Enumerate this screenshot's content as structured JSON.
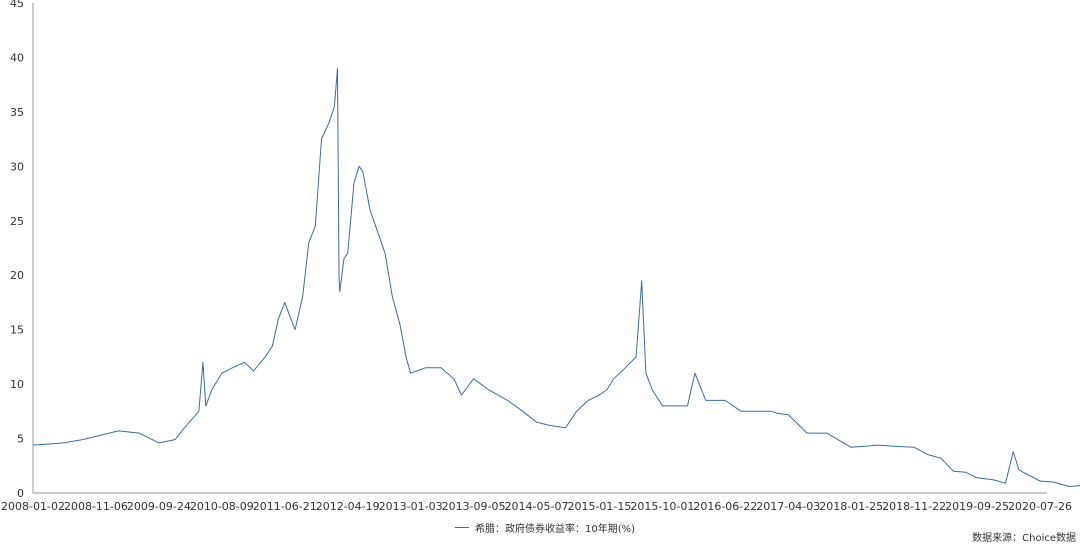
{
  "chart_data": {
    "type": "line",
    "title": "",
    "xlabel": "",
    "ylabel": "",
    "x_ticks": [
      "2008-01-02",
      "2008-11-06",
      "2009-09-24",
      "2010-08-09",
      "2011-06-21",
      "2012-04-19",
      "2013-01-03",
      "2013-09-05",
      "2014-05-07",
      "2015-01-15",
      "2015-10-01",
      "2016-06-22",
      "2017-04-03",
      "2018-01-25",
      "2018-11-22",
      "2019-09-25",
      "2020-07-26"
    ],
    "y_ticks": [
      0,
      5,
      10,
      15,
      20,
      25,
      30,
      35,
      40,
      45
    ],
    "ylim": [
      0,
      45
    ],
    "grid": false,
    "legend_position": "bottom-center",
    "series": [
      {
        "name": "希腊：政府债券收益率：10年期(%)",
        "color": "#3F6CA0",
        "x": [
          "2008-01-02",
          "2008-06-01",
          "2008-09-01",
          "2008-11-06",
          "2009-03-01",
          "2009-06-15",
          "2009-09-24",
          "2009-12-15",
          "2010-02-01",
          "2010-04-15",
          "2010-05-05",
          "2010-05-20",
          "2010-06-20",
          "2010-08-09",
          "2010-10-01",
          "2010-12-01",
          "2011-01-15",
          "2011-03-15",
          "2011-04-20",
          "2011-05-20",
          "2011-06-21",
          "2011-07-20",
          "2011-08-10",
          "2011-09-15",
          "2011-10-15",
          "2011-11-15",
          "2011-12-15",
          "2012-01-20",
          "2012-02-15",
          "2012-03-01",
          "2012-03-08",
          "2012-03-12",
          "2012-04-01",
          "2012-04-19",
          "2012-05-15",
          "2012-06-05",
          "2012-06-20",
          "2012-07-20",
          "2012-08-20",
          "2012-09-20",
          "2012-10-20",
          "2012-11-20",
          "2012-12-15",
          "2013-01-03",
          "2013-03-01",
          "2013-05-01",
          "2013-06-20",
          "2013-07-20",
          "2013-09-05",
          "2013-11-01",
          "2014-01-15",
          "2014-03-15",
          "2014-05-07",
          "2014-07-01",
          "2014-09-01",
          "2014-10-15",
          "2014-12-01",
          "2015-01-15",
          "2015-02-15",
          "2015-03-15",
          "2015-05-01",
          "2015-06-15",
          "2015-07-08",
          "2015-07-25",
          "2015-08-20",
          "2015-10-01",
          "2016-01-15",
          "2016-02-15",
          "2016-04-01",
          "2016-06-22",
          "2016-09-01",
          "2016-11-15",
          "2017-01-15",
          "2017-02-15",
          "2017-04-03",
          "2017-07-01",
          "2017-10-01",
          "2018-01-25",
          "2018-04-01",
          "2018-06-01",
          "2018-08-15",
          "2018-11-22",
          "2019-02-01",
          "2019-04-01",
          "2019-06-01",
          "2019-08-01",
          "2019-09-25",
          "2019-12-15",
          "2020-02-10",
          "2020-03-18",
          "2020-04-15",
          "2020-07-26",
          "2020-10-01",
          "2020-12-15",
          "2021-02-15",
          "2021-03-15"
        ],
        "values": [
          4.4,
          4.6,
          4.9,
          5.2,
          5.7,
          5.5,
          4.6,
          4.9,
          6.0,
          7.5,
          12.0,
          8.0,
          9.5,
          11.0,
          11.5,
          12.0,
          11.2,
          12.5,
          13.5,
          16.0,
          17.5,
          16.0,
          15.0,
          18.0,
          23.0,
          24.5,
          32.5,
          34.0,
          35.5,
          39.0,
          20.0,
          18.5,
          21.5,
          22.0,
          28.5,
          30.0,
          29.5,
          26.0,
          24.0,
          22.0,
          18.0,
          15.5,
          12.5,
          11.0,
          11.5,
          11.5,
          10.5,
          9.0,
          10.5,
          9.5,
          8.5,
          7.5,
          6.5,
          6.2,
          6.0,
          7.5,
          8.5,
          9.0,
          9.5,
          10.5,
          11.5,
          12.5,
          19.5,
          11.0,
          9.5,
          8.0,
          8.0,
          11.0,
          8.5,
          8.5,
          7.5,
          7.5,
          7.5,
          7.3,
          7.2,
          5.5,
          5.5,
          4.2,
          4.3,
          4.4,
          4.3,
          4.2,
          3.5,
          3.2,
          2.0,
          1.9,
          1.4,
          1.2,
          0.9,
          3.8,
          2.1,
          1.1,
          1.0,
          0.6,
          0.7,
          0.8
        ]
      }
    ]
  },
  "legend": {
    "label": "希腊：政府债券收益率：10年期(%)"
  },
  "source": "数据来源：Choice数据"
}
